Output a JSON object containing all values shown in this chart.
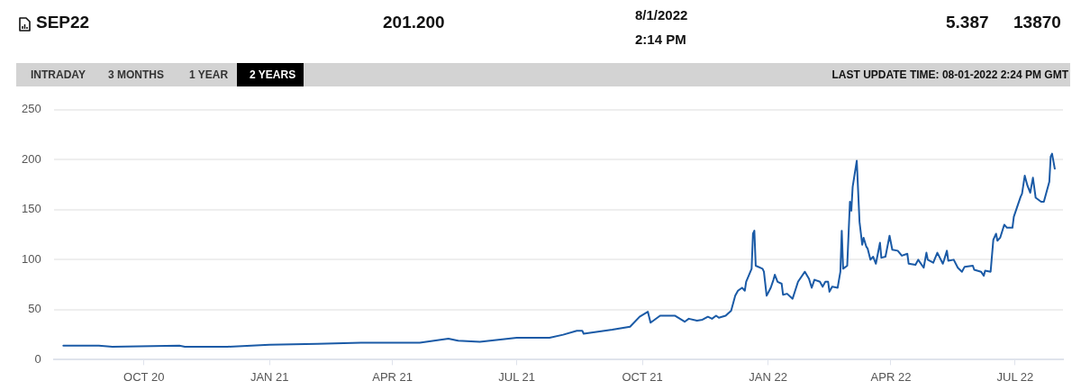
{
  "chart_data": {
    "type": "line",
    "title": "SEP22",
    "annotations": [
      "201.200",
      "8/1/2022",
      "2:14 PM",
      "5.387",
      "13870",
      "INTRADAY",
      "3 MONTHS",
      "1 YEAR",
      "2 YEARS",
      "LAST UPDATE TIME: 08-01-2022 2:24 PM GMT"
    ],
    "x": [
      "2020-08-03",
      "2020-08-29",
      "2020-09-08",
      "2020-10-27",
      "2020-10-31",
      "2020-12-01",
      "2021-01-01",
      "2021-02-05",
      "2021-03-09",
      "2021-04-21",
      "2021-05-12",
      "2021-05-19",
      "2021-06-04",
      "2021-07-01",
      "2021-07-25",
      "2021-08-04",
      "2021-08-14",
      "2021-08-18",
      "2021-08-19",
      "2021-09-09",
      "2021-09-22",
      "2021-09-29",
      "2021-10-05",
      "2021-10-07",
      "2021-10-14",
      "2021-10-25",
      "2021-11-01",
      "2021-11-04",
      "2021-11-10",
      "2021-11-14",
      "2021-11-18",
      "2021-11-21",
      "2021-11-24",
      "2021-11-26",
      "2021-12-01",
      "2021-12-05",
      "2021-12-08",
      "2021-12-10",
      "2021-12-13",
      "2021-12-15",
      "2021-12-16",
      "2021-12-20",
      "2021-12-21",
      "2021-12-22",
      "2021-12-23",
      "2021-12-28",
      "2021-12-29",
      "2021-12-31",
      "2022-01-03",
      "2022-01-05",
      "2022-01-06",
      "2022-01-08",
      "2022-01-11",
      "2022-01-12",
      "2022-01-15",
      "2022-01-19",
      "2022-01-23",
      "2022-01-28",
      "2022-01-31",
      "2022-02-02",
      "2022-02-04",
      "2022-02-08",
      "2022-02-10",
      "2022-02-12",
      "2022-02-14",
      "2022-02-15",
      "2022-02-17",
      "2022-02-21",
      "2022-02-23",
      "2022-02-24",
      "2022-02-25",
      "2022-02-28",
      "2022-03-02",
      "2022-03-03",
      "2022-03-04",
      "2022-03-07",
      "2022-03-09",
      "2022-03-11",
      "2022-03-12",
      "2022-03-14",
      "2022-03-15",
      "2022-03-17",
      "2022-03-19",
      "2022-03-21",
      "2022-03-24",
      "2022-03-25",
      "2022-03-28",
      "2022-03-31",
      "2022-04-02",
      "2022-04-06",
      "2022-04-09",
      "2022-04-13",
      "2022-04-14",
      "2022-04-19",
      "2022-04-21",
      "2022-04-25",
      "2022-04-27",
      "2022-04-28",
      "2022-05-02",
      "2022-05-05",
      "2022-05-09",
      "2022-05-10",
      "2022-05-12",
      "2022-05-13",
      "2022-05-17",
      "2022-05-20",
      "2022-05-23",
      "2022-05-25",
      "2022-05-31",
      "2022-06-01",
      "2022-06-06",
      "2022-06-08",
      "2022-06-09",
      "2022-06-13",
      "2022-06-15",
      "2022-06-17",
      "2022-06-18",
      "2022-06-20",
      "2022-06-23",
      "2022-06-25",
      "2022-06-29",
      "2022-06-30",
      "2022-07-05",
      "2022-07-06",
      "2022-07-08",
      "2022-07-10",
      "2022-07-12",
      "2022-07-14",
      "2022-07-16",
      "2022-07-20",
      "2022-07-22",
      "2022-07-26",
      "2022-07-27",
      "2022-07-28",
      "2022-07-30"
    ],
    "series": [
      {
        "color": "#1a5aa6",
        "values": [
          14,
          14,
          13,
          14,
          13,
          13,
          15,
          16,
          17,
          17,
          21,
          19,
          18,
          22,
          22,
          25,
          29,
          29,
          26,
          30,
          33,
          43,
          48,
          37,
          44,
          44,
          38,
          41,
          39,
          40,
          43,
          41,
          44,
          42,
          44,
          49,
          64,
          69,
          72,
          69,
          78,
          91,
          126,
          129,
          94,
          91,
          88,
          64,
          72,
          80,
          85,
          78,
          76,
          65,
          66,
          61,
          78,
          88,
          81,
          72,
          80,
          78,
          73,
          78,
          78,
          68,
          73,
          72,
          88,
          129,
          91,
          94,
          158,
          149,
          173,
          199,
          138,
          115,
          122,
          113,
          111,
          100,
          103,
          96,
          117,
          102,
          103,
          124,
          110,
          109,
          104,
          106,
          96,
          95,
          100,
          92,
          107,
          100,
          97,
          107,
          96,
          100,
          109,
          99,
          100,
          92,
          88,
          93,
          94,
          90,
          88,
          84,
          89,
          88,
          120,
          126,
          119,
          122,
          135,
          132,
          132,
          143,
          163,
          166,
          184,
          174,
          167,
          182,
          162,
          158,
          158,
          178,
          203,
          206,
          191
        ]
      }
    ],
    "xlim": [
      "2020-07-27",
      "2022-08-05"
    ],
    "xticks": [
      {
        "value": "2020-10-01",
        "label": "OCT 20"
      },
      {
        "value": "2021-01-01",
        "label": "JAN 21"
      },
      {
        "value": "2021-04-01",
        "label": "APR 21"
      },
      {
        "value": "2021-07-01",
        "label": "JUL 21"
      },
      {
        "value": "2021-10-01",
        "label": "OCT 21"
      },
      {
        "value": "2022-01-01",
        "label": "JAN 22"
      },
      {
        "value": "2022-04-01",
        "label": "APR 22"
      },
      {
        "value": "2022-07-01",
        "label": "JUL 22"
      }
    ],
    "ylim": [
      0,
      250
    ],
    "yticks": [
      0,
      50,
      100,
      150,
      200,
      250
    ],
    "grid": "y",
    "legend": false,
    "marker": "none",
    "line_style": "solid"
  }
}
